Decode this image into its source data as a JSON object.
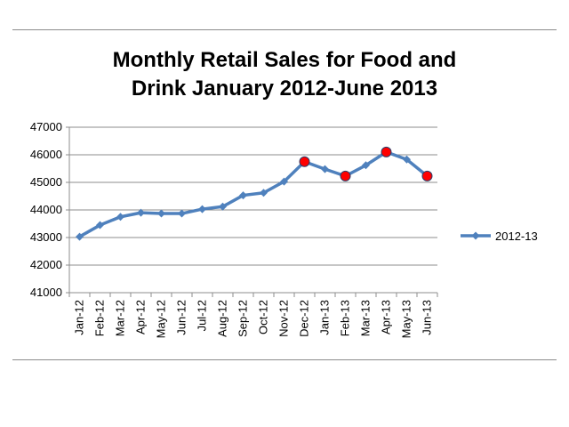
{
  "chart_data": {
    "type": "line",
    "title_line1": "Monthly Retail Sales for Food and",
    "title_line2": "Drink  January 2012-June 2013",
    "categories": [
      "Jan-12",
      "Feb-12",
      "Mar-12",
      "Apr-12",
      "May-12",
      "Jun-12",
      "Jul-12",
      "Aug-12",
      "Sep-12",
      "Oct-12",
      "Nov-12",
      "Dec-12",
      "Jan-13",
      "Feb-13",
      "Mar-13",
      "Apr-13",
      "May-13",
      "Jun-13"
    ],
    "series": [
      {
        "name": "2012-13",
        "color": "#4f81bd",
        "values": [
          43030,
          43450,
          43750,
          43900,
          43870,
          43870,
          44030,
          44120,
          44530,
          44620,
          45030,
          45750,
          45480,
          45230,
          45620,
          46100,
          45830,
          45230
        ],
        "highlighted": [
          "Dec-12",
          "Feb-13",
          "Apr-13",
          "Jun-13"
        ],
        "highlight_color": "#ff0000"
      }
    ],
    "y_ticks": [
      "41000",
      "42000",
      "43000",
      "44000",
      "45000",
      "46000",
      "47000"
    ],
    "ylim": [
      41000,
      47000
    ],
    "grid": true,
    "legend_position": "right"
  }
}
